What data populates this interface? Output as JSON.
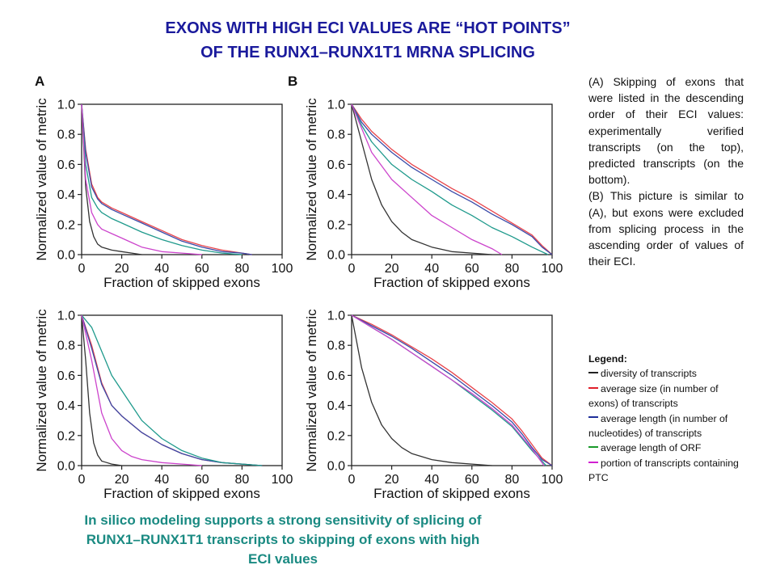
{
  "title_line1": "EXONS WITH HIGH ECI VALUES ARE “HOT POINTS”",
  "title_line2": "OF THE RUNX1–RUNX1T1 MRNA SPLICING",
  "panel_labels": [
    "A",
    "B"
  ],
  "description": {
    "a": "(A) Skipping of exons that were listed in the descending order of their ECI values: experimentally verified transcripts (on the top), predicted transcripts (on the bottom).",
    "b": "(B) This picture is similar to (A), but exons were excluded from splicing process in the ascending order of values of their ECI."
  },
  "legend": {
    "title": "Legend:",
    "items": [
      {
        "label": "diversity of transcripts",
        "color": "#333333"
      },
      {
        "label": "average size (in number of exons) of transcripts",
        "color": "#e0202a"
      },
      {
        "label": "average length (in number of nucleotides) of transcripts",
        "color": "#1e2f9a"
      },
      {
        "label": "average length of ORF",
        "color": "#1a9a2a"
      },
      {
        "label": "portion of transcripts containing PTC",
        "color": "#d020d0"
      }
    ]
  },
  "footer": "In silico modeling supports a strong sensitivity of splicing of RUNX1–RUNX1T1 transcripts to skipping of exons with high ECI values",
  "colors": {
    "title": "#1a1a9c",
    "footer": "#1a8a82",
    "diversity": "#333333",
    "avg_size": "#e8434a",
    "avg_length": "#3a4aa8",
    "orf": "#1f9a8c",
    "ptc": "#cc44cc"
  },
  "chart_data": [
    {
      "panel": "A",
      "position": "top-left",
      "type": "line",
      "xlabel": "Fraction of skipped exons",
      "ylabel": "Normalized value of metric",
      "xlim": [
        0,
        100
      ],
      "ylim": [
        0,
        1
      ],
      "xticks": [
        0,
        20,
        40,
        60,
        80,
        100
      ],
      "yticks": [
        0.0,
        0.2,
        0.4,
        0.6,
        0.8,
        1.0
      ],
      "grid": false,
      "series": [
        {
          "key": "diversity",
          "x": [
            0,
            2,
            4,
            6,
            8,
            10,
            15,
            20,
            25,
            30
          ],
          "y": [
            1,
            0.45,
            0.22,
            0.12,
            0.07,
            0.05,
            0.03,
            0.02,
            0.01,
            0
          ]
        },
        {
          "key": "avg_size",
          "x": [
            0,
            2,
            5,
            8,
            10,
            15,
            20,
            30,
            40,
            50,
            60,
            70,
            80,
            85
          ],
          "y": [
            1,
            0.7,
            0.47,
            0.38,
            0.35,
            0.31,
            0.28,
            0.22,
            0.16,
            0.1,
            0.06,
            0.03,
            0.01,
            0
          ]
        },
        {
          "key": "avg_length",
          "x": [
            0,
            2,
            5,
            8,
            10,
            15,
            20,
            30,
            40,
            50,
            60,
            70,
            80,
            85
          ],
          "y": [
            1,
            0.68,
            0.45,
            0.37,
            0.34,
            0.3,
            0.27,
            0.21,
            0.15,
            0.09,
            0.05,
            0.02,
            0.01,
            0
          ]
        },
        {
          "key": "orf",
          "x": [
            0,
            2,
            5,
            8,
            10,
            15,
            20,
            30,
            40,
            50,
            60,
            70,
            80
          ],
          "y": [
            1,
            0.6,
            0.38,
            0.31,
            0.28,
            0.24,
            0.21,
            0.15,
            0.1,
            0.06,
            0.03,
            0.01,
            0
          ]
        },
        {
          "key": "ptc",
          "x": [
            0,
            2,
            5,
            8,
            10,
            15,
            20,
            25,
            30,
            40,
            50,
            60
          ],
          "y": [
            1,
            0.5,
            0.28,
            0.2,
            0.17,
            0.14,
            0.11,
            0.08,
            0.05,
            0.02,
            0.01,
            0
          ]
        }
      ]
    },
    {
      "panel": "B",
      "position": "top-right",
      "type": "line",
      "xlabel": "Fraction of skipped exons",
      "ylabel": "Normalized value of metric",
      "xlim": [
        0,
        100
      ],
      "ylim": [
        0,
        1
      ],
      "xticks": [
        0,
        20,
        40,
        60,
        80,
        100
      ],
      "yticks": [
        0.0,
        0.2,
        0.4,
        0.6,
        0.8,
        1.0
      ],
      "grid": false,
      "series": [
        {
          "key": "diversity",
          "x": [
            0,
            5,
            10,
            15,
            20,
            25,
            30,
            40,
            50,
            60,
            70
          ],
          "y": [
            1,
            0.75,
            0.5,
            0.33,
            0.22,
            0.15,
            0.1,
            0.05,
            0.02,
            0.01,
            0
          ]
        },
        {
          "key": "avg_size",
          "x": [
            0,
            5,
            10,
            20,
            30,
            40,
            50,
            60,
            70,
            80,
            90,
            95,
            100
          ],
          "y": [
            1,
            0.9,
            0.82,
            0.7,
            0.6,
            0.52,
            0.44,
            0.37,
            0.29,
            0.21,
            0.13,
            0.06,
            0
          ]
        },
        {
          "key": "avg_length",
          "x": [
            0,
            5,
            10,
            20,
            30,
            40,
            50,
            60,
            70,
            80,
            90,
            95,
            100
          ],
          "y": [
            1,
            0.88,
            0.8,
            0.68,
            0.58,
            0.5,
            0.42,
            0.35,
            0.27,
            0.2,
            0.12,
            0.05,
            0
          ]
        },
        {
          "key": "orf",
          "x": [
            0,
            5,
            10,
            20,
            30,
            40,
            50,
            60,
            70,
            80,
            90,
            98
          ],
          "y": [
            1,
            0.86,
            0.75,
            0.6,
            0.5,
            0.42,
            0.33,
            0.26,
            0.18,
            0.12,
            0.05,
            0
          ]
        },
        {
          "key": "ptc",
          "x": [
            0,
            5,
            10,
            20,
            30,
            40,
            50,
            60,
            70,
            75
          ],
          "y": [
            1,
            0.84,
            0.68,
            0.5,
            0.38,
            0.26,
            0.18,
            0.1,
            0.04,
            0
          ]
        }
      ]
    },
    {
      "panel": "A",
      "position": "bottom-left",
      "type": "line",
      "xlabel": "Fraction of skipped exons",
      "ylabel": "Normalized value of metric",
      "xlim": [
        0,
        100
      ],
      "ylim": [
        0,
        1
      ],
      "xticks": [
        0,
        20,
        40,
        60,
        80,
        100
      ],
      "yticks": [
        0.0,
        0.2,
        0.4,
        0.6,
        0.8,
        1.0
      ],
      "grid": false,
      "series": [
        {
          "key": "diversity",
          "x": [
            0,
            2,
            4,
            6,
            8,
            10,
            15,
            20
          ],
          "y": [
            1,
            0.7,
            0.35,
            0.15,
            0.07,
            0.03,
            0.01,
            0
          ]
        },
        {
          "key": "avg_size",
          "x": [
            0,
            5,
            10,
            15,
            20,
            30,
            40,
            50,
            60,
            70,
            80,
            90
          ],
          "y": [
            1,
            0.8,
            0.55,
            0.4,
            0.33,
            0.22,
            0.14,
            0.08,
            0.04,
            0.02,
            0.01,
            0
          ]
        },
        {
          "key": "avg_length",
          "x": [
            0,
            5,
            10,
            15,
            20,
            30,
            40,
            50,
            60,
            70,
            80,
            90
          ],
          "y": [
            1,
            0.78,
            0.54,
            0.4,
            0.33,
            0.22,
            0.14,
            0.08,
            0.04,
            0.02,
            0.01,
            0
          ]
        },
        {
          "key": "orf",
          "x": [
            0,
            5,
            10,
            15,
            20,
            30,
            40,
            50,
            60,
            70,
            80,
            90
          ],
          "y": [
            1,
            0.92,
            0.76,
            0.6,
            0.5,
            0.3,
            0.18,
            0.1,
            0.05,
            0.02,
            0.01,
            0
          ]
        },
        {
          "key": "ptc",
          "x": [
            0,
            5,
            10,
            15,
            20,
            25,
            30,
            40,
            50,
            60
          ],
          "y": [
            1,
            0.7,
            0.35,
            0.18,
            0.1,
            0.06,
            0.04,
            0.02,
            0.01,
            0
          ]
        }
      ]
    },
    {
      "panel": "B",
      "position": "bottom-right",
      "type": "line",
      "xlabel": "Fraction of skipped exons",
      "ylabel": "Normalized value of metric",
      "xlim": [
        0,
        100
      ],
      "ylim": [
        0,
        1
      ],
      "xticks": [
        0,
        20,
        40,
        60,
        80,
        100
      ],
      "yticks": [
        0.0,
        0.2,
        0.4,
        0.6,
        0.8,
        1.0
      ],
      "grid": false,
      "series": [
        {
          "key": "diversity",
          "x": [
            0,
            5,
            10,
            15,
            20,
            25,
            30,
            40,
            50,
            60,
            70
          ],
          "y": [
            1,
            0.65,
            0.42,
            0.27,
            0.18,
            0.12,
            0.08,
            0.04,
            0.02,
            0.01,
            0
          ]
        },
        {
          "key": "avg_size",
          "x": [
            0,
            10,
            20,
            30,
            40,
            50,
            60,
            70,
            80,
            85,
            90,
            95,
            100
          ],
          "y": [
            1,
            0.94,
            0.87,
            0.79,
            0.71,
            0.62,
            0.52,
            0.42,
            0.31,
            0.23,
            0.14,
            0.05,
            0
          ]
        },
        {
          "key": "avg_length",
          "x": [
            0,
            10,
            20,
            30,
            40,
            50,
            60,
            70,
            80,
            85,
            90,
            95,
            100
          ],
          "y": [
            1,
            0.93,
            0.86,
            0.78,
            0.69,
            0.6,
            0.5,
            0.4,
            0.29,
            0.21,
            0.12,
            0.04,
            0
          ]
        },
        {
          "key": "orf",
          "x": [
            0,
            10,
            20,
            30,
            40,
            50,
            60,
            70,
            80,
            85,
            90,
            97
          ],
          "y": [
            1,
            0.92,
            0.84,
            0.75,
            0.66,
            0.57,
            0.47,
            0.37,
            0.26,
            0.18,
            0.1,
            0
          ]
        },
        {
          "key": "ptc",
          "x": [
            0,
            10,
            20,
            30,
            40,
            50,
            60,
            70,
            80,
            85,
            90,
            96
          ],
          "y": [
            1,
            0.92,
            0.84,
            0.75,
            0.66,
            0.57,
            0.48,
            0.38,
            0.27,
            0.19,
            0.11,
            0
          ]
        }
      ]
    }
  ]
}
